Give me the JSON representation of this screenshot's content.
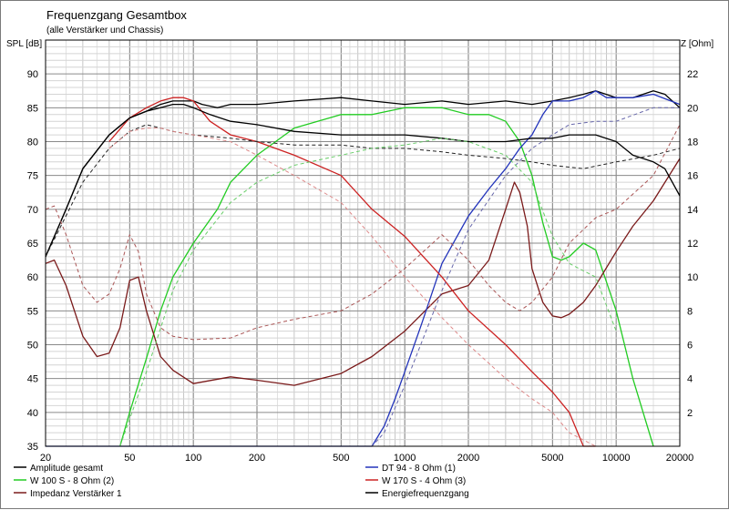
{
  "chart_data": {
    "type": "line",
    "title": "Frequenzgang Gesamtbox",
    "subtitle": "(alle Verstärker und Chassis)",
    "ylabel_left": "SPL [dB]",
    "ylabel_right": "Z [Ohm]",
    "x_scale": "log",
    "xlim": [
      20,
      20000
    ],
    "ylim_left": [
      35,
      95
    ],
    "ylim_right": [
      0,
      24
    ],
    "grid": true,
    "x_ticks": [
      20,
      50,
      100,
      200,
      500,
      1000,
      2000,
      5000,
      10000,
      20000
    ],
    "x_tick_labels": [
      "20",
      "50",
      "100",
      "200",
      "500",
      "1000",
      "2000",
      "5000",
      "10000",
      "20000"
    ],
    "y_left_ticks": [
      35,
      40,
      45,
      50,
      55,
      60,
      65,
      70,
      75,
      80,
      85,
      90
    ],
    "y_left_tick_labels": [
      "35",
      "40",
      "45",
      "50",
      "55",
      "60",
      "65",
      "70",
      "75",
      "80",
      "85",
      "90"
    ],
    "y_right_ticks": [
      2,
      4,
      6,
      8,
      10,
      12,
      14,
      16,
      18,
      20,
      22
    ],
    "y_right_tick_labels": [
      "2",
      "4",
      "6",
      "8",
      "10",
      "12",
      "14",
      "16",
      "18",
      "20",
      "22"
    ],
    "legend_position": "bottom",
    "series": [
      {
        "name": "Amplitude gesamt",
        "color": "#000000",
        "axis": "left",
        "style": "solid",
        "x": [
          20,
          25,
          30,
          40,
          50,
          60,
          70,
          80,
          90,
          100,
          110,
          130,
          150,
          200,
          300,
          500,
          700,
          1000,
          1500,
          2000,
          3000,
          4000,
          5000,
          6000,
          7000,
          8000,
          10000,
          12000,
          15000,
          17000,
          20000
        ],
        "y": [
          63,
          70,
          76,
          81,
          83.5,
          84.5,
          85.5,
          86,
          86,
          86,
          85.5,
          85,
          85.5,
          85.5,
          86,
          86.5,
          86,
          85.5,
          86,
          85.5,
          86,
          85.5,
          86,
          86.5,
          87,
          87.5,
          86.5,
          86.5,
          87.5,
          87,
          85
        ]
      },
      {
        "name": "W 100 S - 8 Ohm (2)",
        "color": "#22cc22",
        "axis": "left",
        "style": "solid",
        "x": [
          45,
          50,
          60,
          70,
          80,
          100,
          130,
          150,
          200,
          300,
          500,
          700,
          1000,
          1500,
          2000,
          2500,
          3000,
          3500,
          4000,
          4500,
          5000,
          5500,
          6000,
          7000,
          8000,
          10000,
          12000,
          15000
        ],
        "y": [
          35,
          40,
          48,
          55,
          60,
          65,
          70,
          74,
          78,
          82,
          84,
          84,
          85,
          85,
          84,
          84,
          83,
          80,
          75,
          68,
          63,
          62.5,
          63,
          65,
          64,
          55,
          45,
          35
        ]
      },
      {
        "name": "Impedanz Verstärker 1",
        "color": "#7a1a1a",
        "axis": "right",
        "style": "solid",
        "x": [
          20,
          22,
          25,
          30,
          35,
          40,
          45,
          50,
          55,
          60,
          70,
          80,
          100,
          150,
          200,
          300,
          500,
          700,
          1000,
          1500,
          2000,
          2500,
          3000,
          3300,
          3500,
          3800,
          4000,
          4500,
          5000,
          5500,
          6000,
          7000,
          8000,
          10000,
          12000,
          15000,
          20000
        ],
        "y": [
          10.8,
          11,
          9.5,
          6.5,
          5.3,
          5.5,
          7,
          9.8,
          10,
          8,
          5.3,
          4.5,
          3.7,
          4.1,
          3.9,
          3.6,
          4.3,
          5.3,
          6.8,
          9,
          9.5,
          11,
          14,
          15.6,
          15,
          13,
          10.5,
          8.5,
          7.7,
          7.6,
          7.8,
          8.5,
          9.5,
          11.5,
          13,
          14.5,
          17
        ]
      },
      {
        "name": "DT 94 - 8 Ohm (1)",
        "color": "#2233bb",
        "axis": "left",
        "style": "solid",
        "x": [
          20,
          700,
          800,
          900,
          1000,
          1200,
          1500,
          2000,
          2500,
          3000,
          3500,
          4000,
          4500,
          5000,
          6000,
          7000,
          8000,
          9000,
          10000,
          12000,
          15000,
          20000
        ],
        "y": [
          35,
          35,
          38,
          42,
          46,
          53,
          62,
          69,
          73,
          76,
          79,
          81,
          84,
          86,
          86,
          86.5,
          87.5,
          86.5,
          86.5,
          86.5,
          87,
          85.5
        ]
      },
      {
        "name": "W 170 S - 4 Ohm (3)",
        "color": "#cc2222",
        "axis": "left",
        "style": "solid",
        "x": [
          40,
          50,
          60,
          70,
          80,
          90,
          100,
          120,
          150,
          200,
          300,
          500,
          700,
          1000,
          1500,
          2000,
          3000,
          4000,
          5000,
          6000,
          7000,
          8000
        ],
        "y": [
          80,
          83.5,
          85,
          86,
          86.5,
          86.5,
          86,
          83,
          81,
          80,
          78,
          75,
          70,
          66,
          60,
          55,
          50,
          46,
          43,
          40,
          35,
          35
        ]
      },
      {
        "name": "Energiefrequenzgang",
        "color": "#000000",
        "axis": "left",
        "style": "solid",
        "x": [
          20,
          25,
          30,
          40,
          50,
          60,
          70,
          80,
          90,
          100,
          120,
          150,
          200,
          300,
          500,
          700,
          1000,
          1500,
          2000,
          3000,
          4000,
          5000,
          6000,
          7000,
          8000,
          10000,
          12000,
          15000,
          17000,
          20000
        ],
        "y": [
          63,
          70,
          76,
          81,
          83.5,
          84.5,
          85,
          85.5,
          85.5,
          85,
          84,
          83,
          82.5,
          81.5,
          81,
          81,
          81,
          80.5,
          80,
          80,
          80.5,
          80.5,
          81,
          81,
          81,
          80,
          78,
          77,
          76,
          72
        ]
      },
      {
        "name": "",
        "color": "#222222",
        "axis": "left",
        "style": "dashed",
        "x": [
          20,
          30,
          40,
          50,
          60,
          70,
          80,
          100,
          150,
          200,
          300,
          500,
          700,
          1000,
          1500,
          2000,
          3000,
          4000,
          5000,
          7000,
          10000,
          15000,
          20000
        ],
        "y": [
          63,
          74,
          79,
          81.5,
          82.5,
          82,
          81.5,
          81,
          80.5,
          80,
          79.5,
          79.5,
          79,
          79,
          78.5,
          78,
          77.5,
          77,
          76.5,
          76,
          77,
          78,
          79
        ]
      },
      {
        "name": "",
        "color": "#6666aa",
        "axis": "left",
        "style": "dashed",
        "x": [
          20,
          700,
          800,
          1000,
          1500,
          2000,
          3000,
          4000,
          5000,
          6000,
          8000,
          10000,
          15000,
          20000
        ],
        "y": [
          35,
          35,
          37,
          44,
          58,
          67,
          75,
          79,
          81,
          82.5,
          83,
          83,
          85,
          85
        ]
      },
      {
        "name": "",
        "color": "#66cc66",
        "axis": "left",
        "style": "dashed",
        "x": [
          45,
          60,
          80,
          100,
          150,
          200,
          300,
          500,
          700,
          1000,
          1500,
          2000,
          3000,
          4000,
          5000,
          6000,
          8000,
          10000
        ],
        "y": [
          35,
          46,
          58,
          64,
          71,
          74,
          76.5,
          78,
          79,
          79.5,
          80.5,
          80,
          78,
          74,
          66,
          62,
          60,
          52
        ]
      },
      {
        "name": "",
        "color": "#dd8888",
        "axis": "left",
        "style": "dashed",
        "x": [
          40,
          50,
          60,
          70,
          80,
          100,
          150,
          200,
          300,
          500,
          700,
          1000,
          1500,
          2000,
          3000,
          4000,
          5000,
          6000,
          8000
        ],
        "y": [
          79,
          81.5,
          82,
          82,
          81.5,
          81,
          80,
          78,
          75,
          71,
          66,
          60,
          54,
          50,
          45,
          42,
          40,
          37,
          35
        ]
      },
      {
        "name": "",
        "color": "#aa5555",
        "axis": "right",
        "style": "dashed",
        "x": [
          20,
          22,
          25,
          30,
          35,
          40,
          45,
          50,
          55,
          60,
          70,
          80,
          100,
          150,
          200,
          300,
          500,
          700,
          1000,
          1500,
          2000,
          2500,
          3000,
          3500,
          4000,
          5000,
          6000,
          8000,
          10000,
          15000,
          20000
        ],
        "y": [
          14,
          14.2,
          12.5,
          9.5,
          8.5,
          9,
          10.5,
          12.5,
          11.5,
          9,
          7,
          6.5,
          6.3,
          6.4,
          7,
          7.5,
          8,
          9,
          10.5,
          12.5,
          11,
          9.5,
          8.5,
          8,
          8.5,
          10,
          12,
          13.5,
          14,
          16,
          19
        ]
      }
    ]
  }
}
